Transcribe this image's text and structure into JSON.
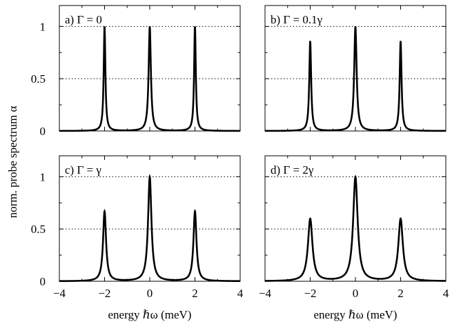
{
  "chart_data": {
    "type": "line",
    "ylabel": "norm. probe spectrum α",
    "xlabel": "energy ℏω (meV)",
    "xlim": [
      -4,
      4
    ],
    "ylim": [
      0,
      1.2
    ],
    "xticks": [
      -4,
      -2,
      0,
      2,
      4
    ],
    "xtick_labels": [
      "−4",
      "−2",
      "0",
      "2",
      "4"
    ],
    "yticks": [
      0,
      0.5,
      1
    ],
    "ytick_labels": [
      "0",
      "0.5",
      "1"
    ],
    "grid": "dotted horizontal at 0.5 and 1",
    "line_color": "#000000",
    "panels": [
      {
        "label": "a) Γ = 0",
        "peaks": [
          {
            "x": -2,
            "height": 1.0
          },
          {
            "x": 0,
            "height": 1.0
          },
          {
            "x": 2,
            "height": 1.0
          }
        ],
        "width_left": 0.045,
        "width_center": 0.06,
        "width_right": 0.045
      },
      {
        "label": "b) Γ = 0.1γ",
        "peaks": [
          {
            "x": -2,
            "height": 0.86
          },
          {
            "x": 0,
            "height": 1.0
          },
          {
            "x": 2,
            "height": 0.86
          }
        ],
        "width_left": 0.05,
        "width_center": 0.065,
        "width_right": 0.05
      },
      {
        "label": "c) Γ = γ",
        "peaks": [
          {
            "x": -2,
            "height": 0.67
          },
          {
            "x": 0,
            "height": 1.0
          },
          {
            "x": 2,
            "height": 0.67
          }
        ],
        "width_left": 0.08,
        "width_center": 0.09,
        "width_right": 0.08
      },
      {
        "label": "d) Γ = 2γ",
        "peaks": [
          {
            "x": -2,
            "height": 0.6
          },
          {
            "x": 0,
            "height": 1.0
          },
          {
            "x": 2,
            "height": 0.6
          }
        ],
        "width_left": 0.12,
        "width_center": 0.12,
        "width_right": 0.12
      }
    ]
  }
}
